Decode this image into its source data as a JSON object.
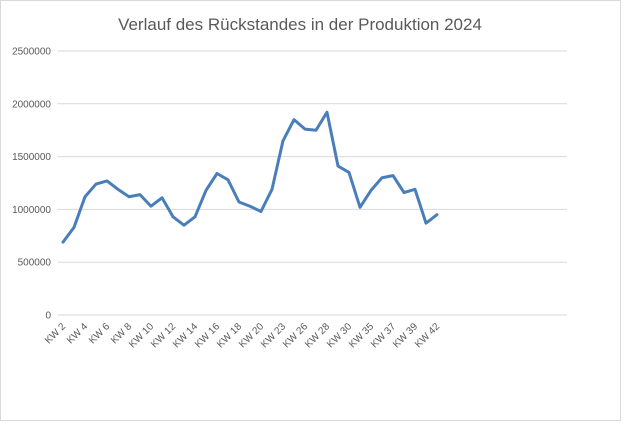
{
  "chart_data": {
    "type": "line",
    "title": "Verlauf des Rückstandes in der Produktion 2024",
    "categories": [
      "KW 2",
      null,
      "KW 4",
      null,
      "KW 6",
      null,
      "KW 8",
      null,
      "KW 10",
      null,
      "KW 12",
      null,
      "KW 14",
      null,
      "KW 16",
      null,
      "KW 18",
      null,
      "KW 20",
      null,
      "KW 23",
      null,
      "KW 26",
      null,
      "KW 28",
      null,
      "KW 30",
      null,
      "KW 35",
      null,
      "KW 37",
      null,
      "KW 39",
      null,
      "KW 42"
    ],
    "series": [
      {
        "name": "Rückstand",
        "color": "#4a7ebb",
        "values": [
          690000,
          830000,
          1120000,
          1240000,
          1270000,
          1190000,
          1120000,
          1140000,
          1030000,
          1110000,
          930000,
          850000,
          930000,
          1180000,
          1340000,
          1280000,
          1070000,
          1030000,
          980000,
          1190000,
          1650000,
          1850000,
          1760000,
          1750000,
          1920000,
          1410000,
          1350000,
          1020000,
          1180000,
          1300000,
          1320000,
          1160000,
          1190000,
          870000,
          950000
        ]
      }
    ],
    "ylim": [
      0,
      2500000
    ],
    "yticks": [
      0,
      500000,
      1000000,
      1500000,
      2000000,
      2500000
    ],
    "grid": true
  }
}
